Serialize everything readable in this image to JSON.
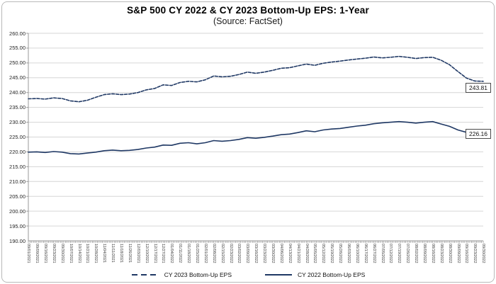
{
  "chart_data": {
    "type": "line",
    "title": "S&P 500 CY 2022 & CY 2023 Bottom-Up EPS: 1-Year",
    "subtitle": "(Source: FactSet)",
    "xlabel": "",
    "ylabel": "",
    "ylim": [
      190,
      260
    ],
    "ytick_step": 5,
    "yticks": [
      "260.00",
      "255.00",
      "250.00",
      "245.00",
      "240.00",
      "235.00",
      "230.00",
      "225.00",
      "220.00",
      "215.00",
      "210.00",
      "205.00",
      "200.00",
      "195.00",
      "190.00"
    ],
    "grid": true,
    "legend_position": "bottom",
    "line_color": "#1f3864",
    "grid_color": "#d6d6d6",
    "axis_color": "#9a9a9a",
    "x": [
      "09/01/2021",
      "09/09/2021",
      "09/16/2021",
      "09/23/2021",
      "09/30/2021",
      "10/07/2021",
      "10/14/2021",
      "10/21/2021",
      "10/28/2021",
      "11/04/2021",
      "11/11/2021",
      "11/18/2021",
      "11/26/2021",
      "12/03/2021",
      "12/10/2021",
      "12/17/2021",
      "12/27/2021",
      "01/04/2022",
      "01/11/2022",
      "01/18/2022",
      "01/25/2022",
      "02/01/2022",
      "02/08/2022",
      "02/15/2022",
      "02/23/2022",
      "03/02/2022",
      "03/09/2022",
      "03/16/2022",
      "03/23/2022",
      "03/30/2022",
      "04/06/2022",
      "04/13/2022",
      "04/21/2022",
      "04/28/2022",
      "05/05/2022",
      "05/12/2022",
      "05/19/2022",
      "05/26/2022",
      "06/03/2022",
      "06/10/2022",
      "06/17/2022",
      "06/27/2022",
      "07/05/2022",
      "07/12/2022",
      "07/19/2022",
      "07/26/2022",
      "08/02/2022",
      "08/09/2022",
      "08/16/2022",
      "08/23/2022",
      "08/30/2022",
      "09/09/2022",
      "09/16/2022",
      "09/23/2022",
      "09/30/2022"
    ],
    "series": [
      {
        "name": "CY 2023 Bottom-Up EPS",
        "style": "dashed",
        "values": [
          237.9,
          238.0,
          237.8,
          238.2,
          238.0,
          237.2,
          236.9,
          237.4,
          238.4,
          239.3,
          239.6,
          239.3,
          239.5,
          240.0,
          240.9,
          241.4,
          242.6,
          242.4,
          243.4,
          243.8,
          243.6,
          244.3,
          245.6,
          245.3,
          245.5,
          246.1,
          246.9,
          246.5,
          246.9,
          247.5,
          248.2,
          248.4,
          249.0,
          249.6,
          249.2,
          249.9,
          250.3,
          250.6,
          251.0,
          251.3,
          251.6,
          252.0,
          251.7,
          251.9,
          252.2,
          251.9,
          251.5,
          251.8,
          251.9,
          250.9,
          249.4,
          247.1,
          244.9,
          243.9,
          243.81
        ]
      },
      {
        "name": "CY 2022 Bottom-Up EPS",
        "style": "solid",
        "values": [
          219.9,
          220.0,
          219.8,
          220.1,
          219.9,
          219.4,
          219.3,
          219.6,
          219.9,
          220.4,
          220.6,
          220.4,
          220.5,
          220.8,
          221.3,
          221.6,
          222.3,
          222.2,
          222.9,
          223.1,
          222.7,
          223.1,
          223.8,
          223.6,
          223.8,
          224.2,
          224.8,
          224.6,
          224.9,
          225.3,
          225.8,
          226.0,
          226.5,
          227.1,
          226.8,
          227.4,
          227.7,
          227.9,
          228.3,
          228.7,
          229.0,
          229.5,
          229.8,
          230.0,
          230.2,
          230.0,
          229.7,
          230.0,
          230.2,
          229.4,
          228.6,
          227.4,
          226.6,
          226.3,
          226.16
        ]
      }
    ],
    "end_labels": [
      {
        "text": "243.81",
        "series": 0
      },
      {
        "text": "226.16",
        "series": 1
      }
    ]
  }
}
